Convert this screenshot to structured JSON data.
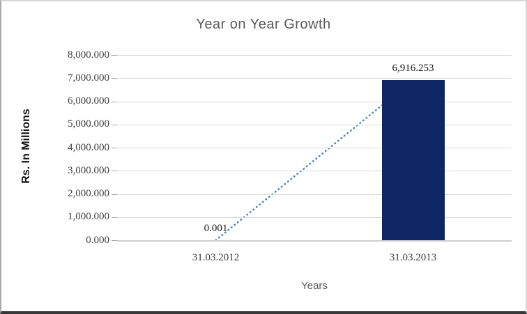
{
  "chart_data": {
    "type": "bar",
    "title": "Year on Year Growth",
    "xlabel": "Years",
    "ylabel": "Rs. In Millions",
    "categories": [
      "31.03.2012",
      "31.03.2013"
    ],
    "values": [
      0.001,
      6916.253
    ],
    "value_labels": [
      "0.001",
      "6,916.253"
    ],
    "ylim": [
      0,
      8000
    ],
    "ytick_step": 1000,
    "ytick_labels": [
      "8,000.000",
      "7,000.000",
      "6,000.000",
      "5,000.000",
      "4,000.000",
      "3,000.000",
      "2,000.000",
      "1,000.000",
      "0.000"
    ],
    "grid": true,
    "legend": "none",
    "trendline": {
      "style": "dotted",
      "from_value": 0.001,
      "to_value": 6916.253
    },
    "colors": {
      "bar_fill": "#0E2663",
      "trendline": "#4E87C5",
      "gridline": "#D9D9D9",
      "axis_text": "#3F3F3F",
      "title_text": "#595959",
      "data_label_text": "#1A1A1A"
    }
  }
}
